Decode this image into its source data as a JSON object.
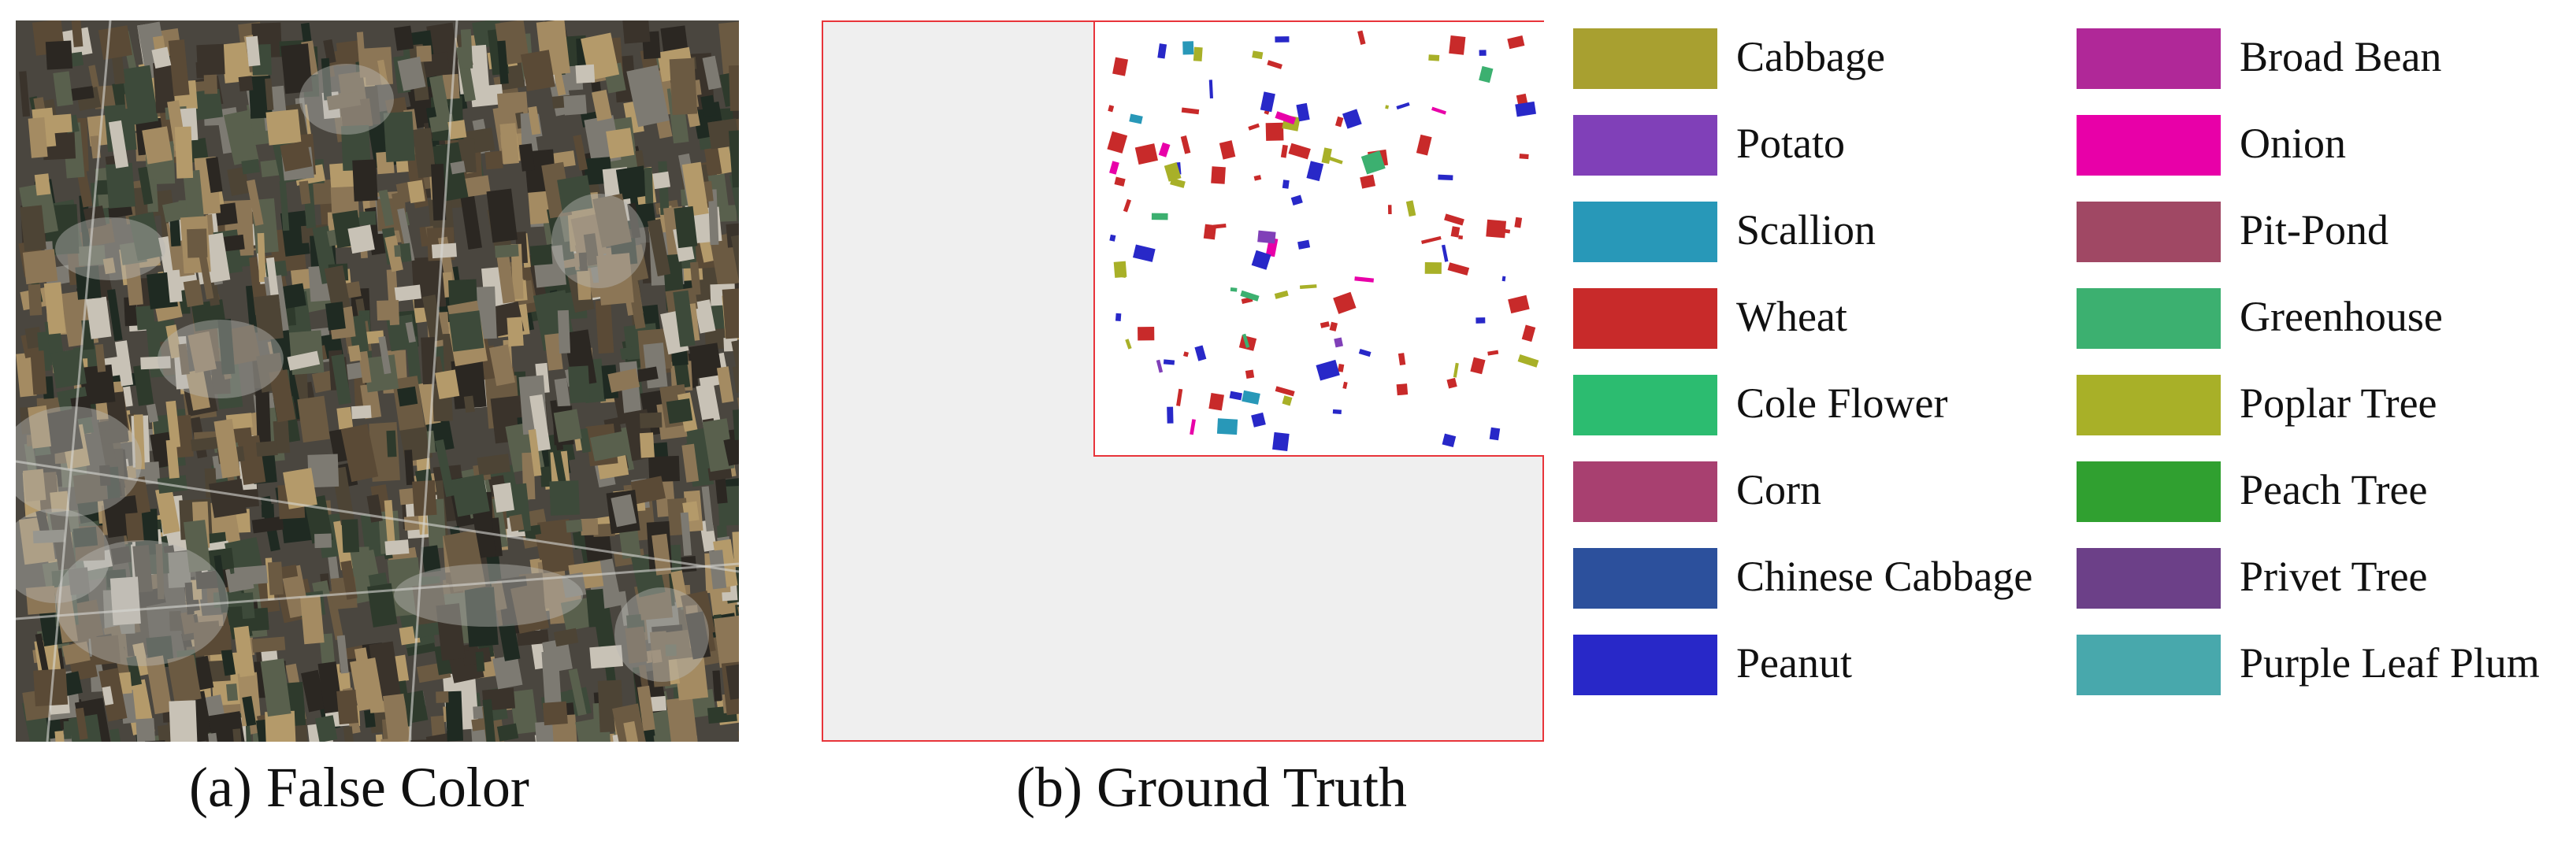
{
  "captions": {
    "a": "(a) False Color",
    "b": "(b) Ground Truth"
  },
  "legend": {
    "column1": [
      {
        "label": "Cabbage",
        "color": "#a8a030"
      },
      {
        "label": "Potato",
        "color": "#8040b8"
      },
      {
        "label": "Scallion",
        "color": "#2898b8"
      },
      {
        "label": "Wheat",
        "color": "#c82a2a"
      },
      {
        "label": "Cole Flower",
        "color": "#2cbc70"
      },
      {
        "label": "Corn",
        "color": "#a84070"
      },
      {
        "label": "Chinese Cabbage",
        "color": "#2c509c"
      },
      {
        "label": "Peanut",
        "color": "#2828c8"
      }
    ],
    "column2": [
      {
        "label": "Broad Bean",
        "color": "#b02898"
      },
      {
        "label": "Onion",
        "color": "#e800a8"
      },
      {
        "label": "Pit-Pond",
        "color": "#a04864"
      },
      {
        "label": "Greenhouse",
        "color": "#3cb070"
      },
      {
        "label": "Poplar Tree",
        "color": "#a8b028"
      },
      {
        "label": "Peach Tree",
        "color": "#30a030"
      },
      {
        "label": "Privet Tree",
        "color": "#6c4088"
      },
      {
        "label": "Purple Leaf Plum",
        "color": "#48a8ac"
      }
    ]
  }
}
